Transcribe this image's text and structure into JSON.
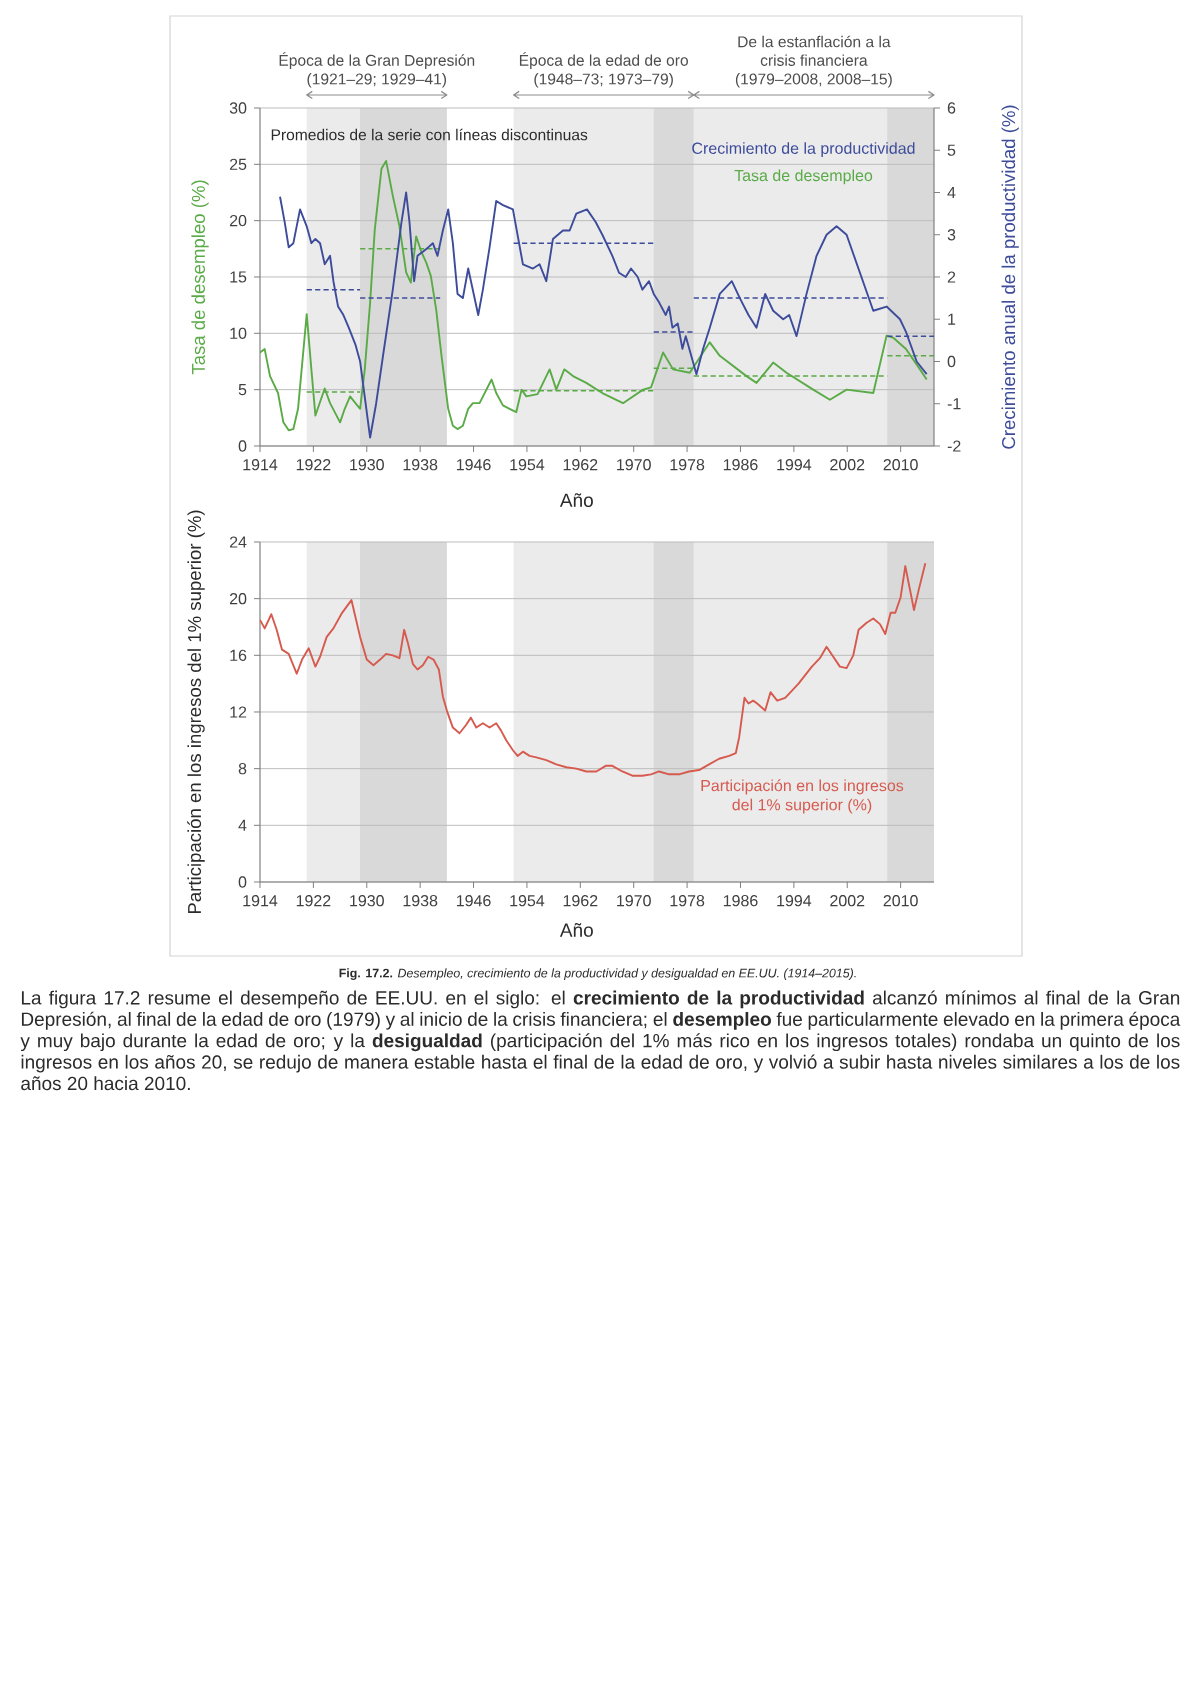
{
  "chart_data": [
    {
      "type": "line",
      "xlim": [
        1914,
        2015
      ],
      "xticks": [
        1914,
        1922,
        1930,
        1938,
        1946,
        1954,
        1962,
        1970,
        1978,
        1986,
        1994,
        2002,
        2010
      ],
      "ylim": [
        0,
        30
      ],
      "yticks": [
        0,
        5,
        10,
        15,
        20,
        25,
        30
      ],
      "y2lim": [
        -2,
        6
      ],
      "y2ticks": [
        -2,
        -1,
        0,
        1,
        2,
        3,
        4,
        5,
        6
      ],
      "xlabel": "Año",
      "ylabel": "Tasa de desempleo (%)",
      "y2label": "Crecimiento anual de la productividad (%)",
      "grid": "y",
      "legend": "top right",
      "bands": [
        {
          "axis": "x",
          "from": 1921,
          "to": 1942,
          "label": "Época de la Gran Depresión (1921–29; 1929–41)",
          "color": "#ebebeb"
        },
        {
          "axis": "x",
          "from": 1929,
          "to": 1942,
          "color": "#d9d9d9"
        },
        {
          "axis": "x",
          "from": 1952,
          "to": 1979,
          "label": "Época de la edad de oro (1948–73; 1973–79)",
          "color": "#ebebeb"
        },
        {
          "axis": "x",
          "from": 1973,
          "to": 1979,
          "color": "#d9d9d9"
        },
        {
          "axis": "x",
          "from": 1979,
          "to": 2015,
          "label": "De la estanflación a la crisis financiera (1979–2008, 2008–15)",
          "color": "#ebebeb"
        },
        {
          "axis": "x",
          "from": 2008,
          "to": 2015,
          "color": "#d9d9d9"
        }
      ],
      "annotations": [
        "Promedios de la serie con líneas discontinuas"
      ],
      "series": [
        {
          "name": "Crecimiento de la productividad",
          "color": "#3d4b9b",
          "axis": "y2",
          "x": [
            1917.0,
            1917.7,
            1918.3,
            1919.0,
            1920.0,
            1921.0,
            1921.7,
            1922.3,
            1923.0,
            1923.7,
            1924.5,
            1925.0,
            1925.7,
            1926.5,
            1927.3,
            1928.3,
            1929.0,
            1930.5,
            1931.4,
            1932.4,
            1933.9,
            1935.2,
            1935.9,
            1936.4,
            1937.1,
            1937.6,
            1938.4,
            1939.2,
            1939.9,
            1940.6,
            1941.4,
            1942.2,
            1942.9,
            1943.6,
            1944.4,
            1945.2,
            1946.7,
            1947.4,
            1948.4,
            1949.4,
            1950.4,
            1951.9,
            1953.4,
            1954.9,
            1955.9,
            1956.9,
            1957.9,
            1959.4,
            1960.4,
            1961.4,
            1963.0,
            1964.3,
            1965.3,
            1966.8,
            1967.8,
            1968.8,
            1969.6,
            1970.6,
            1971.3,
            1972.3,
            1973.0,
            1973.8,
            1974.8,
            1975.3,
            1975.8,
            1976.6,
            1977.3,
            1977.8,
            1979.4,
            1980.4,
            1981.4,
            1982.9,
            1984.7,
            1985.9,
            1987.2,
            1988.4,
            1989.7,
            1990.9,
            1992.4,
            1993.3,
            1994.4,
            1995.9,
            1997.4,
            1998.9,
            2000.4,
            2001.9,
            2003.9,
            2005.9,
            2007.9,
            2009.9,
            2010.8,
            2012.4,
            2013.9
          ],
          "values": [
            3.9,
            3.3,
            2.7,
            2.8,
            3.6,
            3.2,
            2.8,
            2.9,
            2.8,
            2.3,
            2.5,
            1.9,
            1.3,
            1.1,
            0.8,
            0.4,
            0.0,
            -1.8,
            -1.0,
            0.1,
            1.7,
            3.3,
            4.0,
            3.3,
            1.9,
            2.5,
            2.6,
            2.7,
            2.8,
            2.5,
            3.1,
            3.6,
            2.8,
            1.6,
            1.5,
            2.2,
            1.1,
            1.7,
            2.7,
            3.8,
            3.7,
            3.6,
            2.3,
            2.2,
            2.3,
            1.9,
            2.9,
            3.1,
            3.1,
            3.5,
            3.6,
            3.3,
            3.0,
            2.5,
            2.1,
            2.0,
            2.2,
            2.0,
            1.7,
            1.9,
            1.6,
            1.4,
            1.1,
            1.3,
            0.8,
            0.9,
            0.3,
            0.6,
            -0.3,
            0.3,
            0.8,
            1.6,
            1.9,
            1.5,
            1.1,
            0.8,
            1.6,
            1.2,
            1.0,
            1.1,
            0.6,
            1.6,
            2.5,
            3.0,
            3.2,
            3.0,
            2.1,
            1.2,
            1.3,
            1.0,
            0.7,
            0.0,
            -0.3
          ]
        },
        {
          "name": "Tasa de desempleo",
          "color": "#5aab47",
          "x": [
            1914.0,
            1914.7,
            1915.5,
            1916.7,
            1917.5,
            1918.3,
            1919.0,
            1919.7,
            1921.0,
            1921.7,
            1922.3,
            1923.7,
            1924.5,
            1926.0,
            1926.7,
            1927.5,
            1928.3,
            1929.0,
            1929.7,
            1930.5,
            1931.2,
            1932.2,
            1932.9,
            1933.9,
            1934.9,
            1935.9,
            1936.6,
            1937.4,
            1938.2,
            1938.9,
            1939.6,
            1940.4,
            1941.2,
            1942.2,
            1942.9,
            1943.6,
            1944.4,
            1945.2,
            1945.9,
            1946.9,
            1948.7,
            1949.4,
            1950.4,
            1951.4,
            1952.4,
            1953.2,
            1953.9,
            1955.6,
            1957.4,
            1958.4,
            1959.6,
            1960.9,
            1961.9,
            1962.9,
            1965.3,
            1968.4,
            1971.4,
            1972.6,
            1974.4,
            1975.9,
            1978.4,
            1981.4,
            1982.9,
            1986.9,
            1988.4,
            1990.9,
            1992.9,
            1996.9,
            1999.4,
            2001.9,
            2005.9,
            2007.9,
            2008.9,
            2010.8,
            2012.9,
            2013.9
          ],
          "values": [
            8.3,
            8.6,
            6.2,
            4.7,
            2.1,
            1.4,
            1.5,
            3.3,
            11.7,
            6.8,
            2.7,
            5.1,
            3.8,
            2.1,
            3.3,
            4.4,
            3.8,
            3.3,
            6.8,
            12.7,
            19.2,
            24.6,
            25.3,
            22.2,
            19.5,
            15.4,
            14.5,
            18.6,
            17.2,
            16.3,
            15.1,
            12.1,
            8.0,
            3.3,
            1.8,
            1.5,
            1.8,
            3.3,
            3.8,
            3.8,
            5.9,
            4.7,
            3.6,
            3.3,
            3.0,
            5.0,
            4.4,
            4.6,
            6.8,
            5.0,
            6.8,
            6.2,
            5.9,
            5.6,
            4.7,
            3.8,
            5.0,
            5.2,
            8.3,
            6.8,
            6.5,
            9.2,
            8.0,
            6.2,
            5.6,
            7.4,
            6.5,
            5.0,
            4.1,
            5.0,
            4.7,
            9.8,
            9.6,
            8.6,
            6.8,
            5.9
          ]
        },
        {
          "color": "#3d4b9b",
          "axis": "y2",
          "line_style": "dashed",
          "x": [
            1921,
            1929
          ],
          "values": [
            1.7,
            1.7
          ]
        },
        {
          "color": "#3d4b9b",
          "axis": "y2",
          "line_style": "dashed",
          "x": [
            1929,
            1941
          ],
          "values": [
            1.5,
            1.5
          ]
        },
        {
          "color": "#3d4b9b",
          "axis": "y2",
          "line_style": "dashed",
          "x": [
            1952,
            1973
          ],
          "values": [
            2.8,
            2.8
          ]
        },
        {
          "color": "#3d4b9b",
          "axis": "y2",
          "line_style": "dashed",
          "x": [
            1973,
            1979
          ],
          "values": [
            0.7,
            0.7
          ]
        },
        {
          "color": "#3d4b9b",
          "axis": "y2",
          "line_style": "dashed",
          "x": [
            1979,
            2008
          ],
          "values": [
            1.5,
            1.5
          ]
        },
        {
          "color": "#3d4b9b",
          "axis": "y2",
          "line_style": "dashed",
          "x": [
            2008,
            2015
          ],
          "values": [
            0.6,
            0.6
          ]
        },
        {
          "color": "#5aab47",
          "line_style": "dashed",
          "x": [
            1921,
            1929
          ],
          "values": [
            4.8,
            4.8
          ]
        },
        {
          "color": "#5aab47",
          "line_style": "dashed",
          "x": [
            1929,
            1941
          ],
          "values": [
            17.5,
            17.5
          ]
        },
        {
          "color": "#5aab47",
          "line_style": "dashed",
          "x": [
            1952,
            1973
          ],
          "values": [
            4.9,
            4.9
          ]
        },
        {
          "color": "#5aab47",
          "line_style": "dashed",
          "x": [
            1973,
            1979
          ],
          "values": [
            6.9,
            6.9
          ]
        },
        {
          "color": "#5aab47",
          "line_style": "dashed",
          "x": [
            1979,
            2008
          ],
          "values": [
            6.2,
            6.2
          ]
        },
        {
          "color": "#5aab47",
          "line_style": "dashed",
          "x": [
            2008,
            2015
          ],
          "values": [
            8.0,
            8.0
          ]
        }
      ]
    },
    {
      "type": "line",
      "xlim": [
        1914,
        2015
      ],
      "xticks": [
        1914,
        1922,
        1930,
        1938,
        1946,
        1954,
        1962,
        1970,
        1978,
        1986,
        1994,
        2002,
        2010
      ],
      "ylim": [
        0,
        24
      ],
      "yticks": [
        0,
        4,
        8,
        12,
        16,
        20,
        24
      ],
      "xlabel": "Año",
      "ylabel": "Participación en los ingresos del 1% superior (%)",
      "grid": "y",
      "legend": "bottom right",
      "bands": [
        {
          "axis": "x",
          "from": 1921,
          "to": 1942,
          "color": "#ebebeb"
        },
        {
          "axis": "x",
          "from": 1929,
          "to": 1942,
          "color": "#d9d9d9"
        },
        {
          "axis": "x",
          "from": 1952,
          "to": 1979,
          "color": "#ebebeb"
        },
        {
          "axis": "x",
          "from": 1973,
          "to": 1979,
          "color": "#d9d9d9"
        },
        {
          "axis": "x",
          "from": 1979,
          "to": 2015,
          "color": "#ebebeb"
        },
        {
          "axis": "x",
          "from": 2008,
          "to": 2015,
          "color": "#d9d9d9"
        }
      ],
      "annotations": [
        "**Fig. 17.2.** *Desempleo, crecimiento de la productividad y desigualdad en EE.UU. (1914–2015).*",
        "La figura 17.2 resume el desempeño de EE.UU. en el siglo: el **crecimiento de la productividad** alcanzó mínimos al final de la Gran Depresión, al final de la edad de oro (1979) y al inicio de la crisis financiera; el **desempleo** fue particularmente elevado en la primera época y muy bajo durante la edad de oro; y la **desigualdad** (participación del 1% más rico en los ingresos totales) rondaba un quinto de los ingresos en los años 20, se redujo de manera estable hasta el final de la edad de oro, y volvió a subir hasta niveles similares a los de los años 20 hacia 2010."
      ],
      "series": [
        {
          "name": "Participación en los ingresos del 1% superior (%)",
          "color": "#d65a4e",
          "x": [
            1914.0,
            1914.7,
            1915.7,
            1916.5,
            1917.3,
            1918.3,
            1919.5,
            1920.3,
            1921.3,
            1922.3,
            1923.0,
            1924.0,
            1925.0,
            1926.3,
            1927.7,
            1928.3,
            1929.0,
            1930.0,
            1931.0,
            1932.0,
            1932.9,
            1933.9,
            1934.9,
            1935.6,
            1936.2,
            1936.9,
            1937.6,
            1938.4,
            1939.2,
            1940.0,
            1940.8,
            1941.4,
            1942.0,
            1942.9,
            1943.9,
            1944.9,
            1945.6,
            1946.4,
            1947.4,
            1948.4,
            1949.4,
            1950.1,
            1950.9,
            1951.9,
            1952.6,
            1953.4,
            1954.4,
            1955.4,
            1956.9,
            1958.4,
            1959.9,
            1961.4,
            1962.9,
            1964.4,
            1965.8,
            1966.8,
            1968.3,
            1969.8,
            1971.3,
            1972.6,
            1973.8,
            1975.3,
            1976.8,
            1978.3,
            1979.8,
            1981.3,
            1982.8,
            1984.3,
            1985.3,
            1985.8,
            1986.6,
            1987.2,
            1987.9,
            1988.5,
            1989.7,
            1990.5,
            1991.5,
            1992.7,
            1993.7,
            1994.7,
            1995.7,
            1996.7,
            1997.9,
            1998.9,
            1999.9,
            2000.9,
            2001.9,
            2002.9,
            2003.7,
            2004.9,
            2005.9,
            2006.9,
            2007.7,
            2008.5,
            2009.2,
            2010.0,
            2010.7,
            2011.5,
            2012.0,
            2012.7,
            2013.7
          ],
          "values": [
            18.5,
            17.9,
            18.9,
            17.8,
            16.4,
            16.1,
            14.7,
            15.7,
            16.5,
            15.2,
            15.9,
            17.3,
            17.9,
            19.0,
            19.9,
            18.7,
            17.3,
            15.7,
            15.3,
            15.7,
            16.1,
            16.0,
            15.8,
            17.8,
            16.8,
            15.4,
            15.0,
            15.3,
            15.9,
            15.7,
            15.0,
            13.1,
            12.1,
            10.9,
            10.5,
            11.1,
            11.6,
            10.9,
            11.2,
            10.9,
            11.2,
            10.7,
            10.0,
            9.3,
            8.9,
            9.2,
            8.9,
            8.8,
            8.6,
            8.3,
            8.1,
            8.0,
            7.8,
            7.8,
            8.2,
            8.2,
            7.8,
            7.5,
            7.5,
            7.6,
            7.8,
            7.6,
            7.6,
            7.8,
            7.9,
            8.3,
            8.7,
            8.9,
            9.1,
            10.2,
            13.0,
            12.6,
            12.8,
            12.6,
            12.1,
            13.4,
            12.8,
            13.0,
            13.5,
            14.0,
            14.6,
            15.2,
            15.8,
            16.6,
            15.9,
            15.2,
            15.1,
            16.0,
            17.8,
            18.3,
            18.6,
            18.2,
            17.5,
            19.0,
            19.0,
            20.1,
            22.3,
            20.4,
            19.2,
            20.6,
            22.5
          ]
        }
      ]
    }
  ]
}
